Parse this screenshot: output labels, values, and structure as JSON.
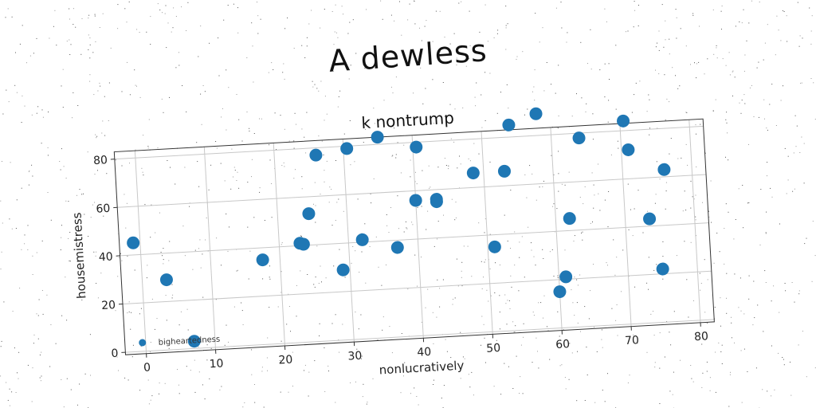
{
  "suptitle": "A dewless",
  "chart_data": {
    "type": "scatter",
    "title": "k nontrump",
    "xlabel": "nonlucratively",
    "ylabel": "housemistress",
    "xlim": [
      -3,
      82
    ],
    "ylim": [
      -1,
      83
    ],
    "xticks": [
      0,
      10,
      20,
      30,
      40,
      50,
      60,
      70,
      80
    ],
    "yticks": [
      0,
      20,
      40,
      60,
      80
    ],
    "grid": true,
    "legend_position": "lower-left",
    "series": [
      {
        "name": "bigheartedness",
        "color": "#1f77b4",
        "x": [
          -1,
          3.5,
          7,
          17.5,
          23,
          23.5,
          24.5,
          26,
          29,
          30.5,
          32,
          35,
          37,
          40,
          40.5,
          43,
          43,
          48.5,
          51,
          53,
          54,
          58,
          60,
          61,
          62,
          64,
          70.5,
          71,
          73.5,
          75,
          76
        ],
        "y": [
          45,
          29,
          3,
          35,
          41,
          40.5,
          53,
          77,
          29,
          79,
          41,
          83,
          37,
          56,
          78,
          56,
          55,
          66,
          35,
          66,
          85,
          89,
          15,
          21,
          45,
          78,
          84,
          72,
          43,
          22,
          63
        ]
      }
    ]
  }
}
